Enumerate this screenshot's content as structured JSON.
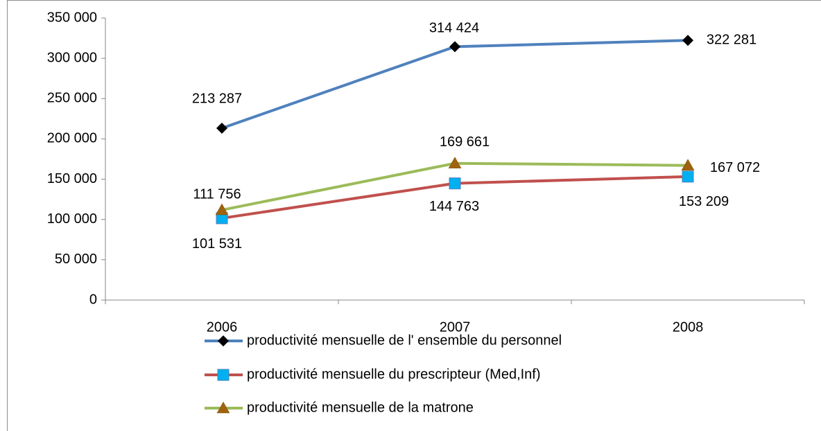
{
  "chart_data": {
    "type": "line",
    "categories": [
      "2006",
      "2007",
      "2008"
    ],
    "ylim": [
      0,
      350000
    ],
    "yticks": [
      {
        "value": 0,
        "label": "0"
      },
      {
        "value": 50000,
        "label": "50 000"
      },
      {
        "value": 100000,
        "label": "100 000"
      },
      {
        "value": 150000,
        "label": "150 000"
      },
      {
        "value": 200000,
        "label": "200 000"
      },
      {
        "value": 250000,
        "label": "250 000"
      },
      {
        "value": 300000,
        "label": "300 000"
      },
      {
        "value": 350000,
        "label": "350 000"
      }
    ],
    "legend": "bottom",
    "series": [
      {
        "name": "productivité mensuelle de l' ensemble du personnel",
        "color": "#4f81bd",
        "marker": "diamond",
        "marker_color": "#000000",
        "values": [
          213287,
          314424,
          322281
        ],
        "value_labels": [
          "213 287",
          "314 424",
          "322 281"
        ]
      },
      {
        "name": "productivité mensuelle du prescripteur (Med,Inf)",
        "color": "#c0504d",
        "marker": "square",
        "marker_color": "#00b0f0",
        "values": [
          101531,
          144763,
          153209
        ],
        "value_labels": [
          "101 531",
          "144 763",
          "153 209"
        ]
      },
      {
        "name": "productivité mensuelle de la matrone",
        "color": "#9bbb59",
        "marker": "triangle",
        "marker_color": "#a0620e",
        "values": [
          111756,
          169661,
          167072
        ],
        "value_labels": [
          "111 756",
          "169 661",
          "167 072"
        ]
      }
    ]
  }
}
